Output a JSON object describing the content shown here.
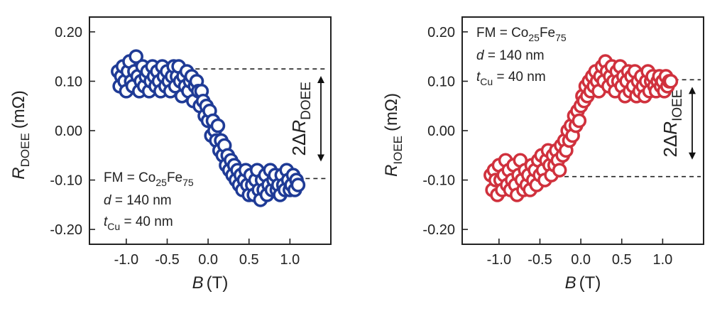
{
  "chart_data": [
    {
      "type": "scatter",
      "xlabel": {
        "var": "B",
        "unit": "(T)"
      },
      "ylabel": {
        "var": "R",
        "sub": "DOEE",
        "unit": "(mΩ)"
      },
      "xlim": [
        -1.45,
        1.5
      ],
      "ylim": [
        -0.23,
        0.23
      ],
      "xticks": [
        -1.0,
        -0.5,
        0.0,
        0.5,
        1.0
      ],
      "xtick_labels": [
        "-1.0",
        "-0.5",
        "0.0",
        "0.5",
        "1.0"
      ],
      "yticks": [
        0.2,
        0.1,
        0.0,
        -0.1,
        -0.2
      ],
      "ytick_labels": [
        "0.20",
        "0.10",
        "0.00",
        "-0.10",
        "-0.20"
      ],
      "color": "#1f3b96",
      "annotation": {
        "fm_prefix": "FM = Co",
        "fm_sub1": "25",
        "fm_mid": "Fe",
        "fm_sub2": "75",
        "d_var": "d",
        "d_rest": " = 140 nm",
        "t_var": "t",
        "t_sub": "Cu",
        "t_rest": " = 40 nm",
        "position": "bottom-left"
      },
      "delta": {
        "prefix": "2Δ",
        "var": "R",
        "sub": "DOEE",
        "upper": 0.125,
        "lower": -0.097
      },
      "points": [
        [
          -1.1,
          0.12
        ],
        [
          -1.08,
          0.09
        ],
        [
          -1.06,
          0.11
        ],
        [
          -1.04,
          0.13
        ],
        [
          -1.02,
          0.1
        ],
        [
          -1.0,
          0.08
        ],
        [
          -0.98,
          0.12
        ],
        [
          -0.96,
          0.14
        ],
        [
          -0.94,
          0.1
        ],
        [
          -0.92,
          0.09
        ],
        [
          -0.9,
          0.12
        ],
        [
          -0.88,
          0.15
        ],
        [
          -0.86,
          0.11
        ],
        [
          -0.84,
          0.08
        ],
        [
          -0.82,
          0.1
        ],
        [
          -0.8,
          0.13
        ],
        [
          -0.78,
          0.09
        ],
        [
          -0.76,
          0.11
        ],
        [
          -0.74,
          0.12
        ],
        [
          -0.72,
          0.08
        ],
        [
          -0.7,
          0.1
        ],
        [
          -0.68,
          0.13
        ],
        [
          -0.66,
          0.11
        ],
        [
          -0.64,
          0.09
        ],
        [
          -0.62,
          0.12
        ],
        [
          -0.6,
          0.1
        ],
        [
          -0.58,
          0.08
        ],
        [
          -0.56,
          0.13
        ],
        [
          -0.54,
          0.11
        ],
        [
          -0.52,
          0.09
        ],
        [
          -0.5,
          0.12
        ],
        [
          -0.48,
          0.1
        ],
        [
          -0.46,
          0.08
        ],
        [
          -0.44,
          0.11
        ],
        [
          -0.42,
          0.13
        ],
        [
          -0.4,
          0.09
        ],
        [
          -0.38,
          0.11
        ],
        [
          -0.36,
          0.13
        ],
        [
          -0.34,
          0.1
        ],
        [
          -0.32,
          0.07
        ],
        [
          -0.3,
          0.11
        ],
        [
          -0.28,
          0.09
        ],
        [
          -0.26,
          0.12
        ],
        [
          -0.24,
          0.08
        ],
        [
          -0.22,
          0.1
        ],
        [
          -0.2,
          0.11
        ],
        [
          -0.18,
          0.06
        ],
        [
          -0.16,
          0.09
        ],
        [
          -0.14,
          0.1
        ],
        [
          -0.12,
          0.08
        ],
        [
          -0.1,
          0.05
        ],
        [
          -0.08,
          0.08
        ],
        [
          -0.06,
          0.06
        ],
        [
          -0.04,
          0.03
        ],
        [
          -0.02,
          0.05
        ],
        [
          0.0,
          0.02
        ],
        [
          0.02,
          0.04
        ],
        [
          0.04,
          -0.01
        ],
        [
          0.06,
          0.02
        ],
        [
          0.08,
          0.0
        ],
        [
          0.1,
          -0.02
        ],
        [
          0.12,
          0.01
        ],
        [
          0.14,
          -0.04
        ],
        [
          0.16,
          -0.02
        ],
        [
          0.18,
          -0.05
        ],
        [
          0.2,
          -0.03
        ],
        [
          0.22,
          -0.07
        ],
        [
          0.24,
          -0.05
        ],
        [
          0.26,
          -0.08
        ],
        [
          0.28,
          -0.06
        ],
        [
          0.3,
          -0.09
        ],
        [
          0.32,
          -0.07
        ],
        [
          0.34,
          -0.1
        ],
        [
          0.36,
          -0.08
        ],
        [
          0.38,
          -0.11
        ],
        [
          0.4,
          -0.09
        ],
        [
          0.42,
          -0.12
        ],
        [
          0.44,
          -0.1
        ],
        [
          0.46,
          -0.08
        ],
        [
          0.48,
          -0.11
        ],
        [
          0.5,
          -0.13
        ],
        [
          0.52,
          -0.09
        ],
        [
          0.54,
          -0.11
        ],
        [
          0.56,
          -0.13
        ],
        [
          0.58,
          -0.1
        ],
        [
          0.6,
          -0.08
        ],
        [
          0.62,
          -0.12
        ],
        [
          0.64,
          -0.14
        ],
        [
          0.66,
          -0.1
        ],
        [
          0.68,
          -0.12
        ],
        [
          0.7,
          -0.09
        ],
        [
          0.72,
          -0.13
        ],
        [
          0.74,
          -0.11
        ],
        [
          0.76,
          -0.08
        ],
        [
          0.78,
          -0.12
        ],
        [
          0.8,
          -0.1
        ],
        [
          0.82,
          -0.09
        ],
        [
          0.84,
          -0.12
        ],
        [
          0.86,
          -0.11
        ],
        [
          0.88,
          -0.13
        ],
        [
          0.9,
          -0.09
        ],
        [
          0.92,
          -0.11
        ],
        [
          0.94,
          -0.12
        ],
        [
          0.96,
          -0.08
        ],
        [
          0.98,
          -0.1
        ],
        [
          1.0,
          -0.12
        ],
        [
          1.02,
          -0.11
        ],
        [
          1.04,
          -0.09
        ],
        [
          1.06,
          -0.12
        ],
        [
          1.08,
          -0.1
        ],
        [
          1.1,
          -0.11
        ]
      ]
    },
    {
      "type": "scatter",
      "xlabel": {
        "var": "B",
        "unit": "(T)"
      },
      "ylabel": {
        "var": "R",
        "sub": "IOEE",
        "unit": "(mΩ)"
      },
      "xlim": [
        -1.45,
        1.5
      ],
      "ylim": [
        -0.23,
        0.23
      ],
      "xticks": [
        -1.0,
        -0.5,
        0.0,
        0.5,
        1.0
      ],
      "xtick_labels": [
        "-1.0",
        "-0.5",
        "0.0",
        "0.5",
        "1.0"
      ],
      "yticks": [
        0.2,
        0.1,
        0.0,
        -0.1,
        -0.2
      ],
      "ytick_labels": [
        "0.20",
        "0.10",
        "0.00",
        "-0.10",
        "-0.20"
      ],
      "color": "#d0313d",
      "annotation": {
        "fm_prefix": "FM = Co",
        "fm_sub1": "25",
        "fm_mid": "Fe",
        "fm_sub2": "75",
        "d_var": "d",
        "d_rest": " = 140 nm",
        "t_var": "t",
        "t_sub": "Cu",
        "t_rest": " = 40 nm",
        "position": "top-left"
      },
      "delta": {
        "prefix": "2Δ",
        "var": "R",
        "sub": "IOEE",
        "upper": 0.103,
        "lower": -0.093
      },
      "points": [
        [
          -1.1,
          -0.09
        ],
        [
          -1.08,
          -0.12
        ],
        [
          -1.06,
          -0.08
        ],
        [
          -1.04,
          -0.1
        ],
        [
          -1.02,
          -0.13
        ],
        [
          -1.0,
          -0.07
        ],
        [
          -0.98,
          -0.1
        ],
        [
          -0.96,
          -0.12
        ],
        [
          -0.94,
          -0.09
        ],
        [
          -0.92,
          -0.06
        ],
        [
          -0.9,
          -0.11
        ],
        [
          -0.88,
          -0.08
        ],
        [
          -0.86,
          -0.12
        ],
        [
          -0.84,
          -0.1
        ],
        [
          -0.82,
          -0.07
        ],
        [
          -0.8,
          -0.11
        ],
        [
          -0.78,
          -0.13
        ],
        [
          -0.76,
          -0.09
        ],
        [
          -0.74,
          -0.06
        ],
        [
          -0.72,
          -0.1
        ],
        [
          -0.7,
          -0.12
        ],
        [
          -0.68,
          -0.08
        ],
        [
          -0.66,
          -0.11
        ],
        [
          -0.64,
          -0.09
        ],
        [
          -0.62,
          -0.12
        ],
        [
          -0.6,
          -0.07
        ],
        [
          -0.58,
          -0.1
        ],
        [
          -0.56,
          -0.08
        ],
        [
          -0.54,
          -0.11
        ],
        [
          -0.52,
          -0.06
        ],
        [
          -0.5,
          -0.09
        ],
        [
          -0.48,
          -0.05
        ],
        [
          -0.46,
          -0.08
        ],
        [
          -0.44,
          -0.1
        ],
        [
          -0.42,
          -0.06
        ],
        [
          -0.4,
          -0.04
        ],
        [
          -0.38,
          -0.07
        ],
        [
          -0.36,
          -0.09
        ],
        [
          -0.34,
          -0.05
        ],
        [
          -0.32,
          -0.07
        ],
        [
          -0.3,
          -0.04
        ],
        [
          -0.28,
          -0.06
        ],
        [
          -0.26,
          -0.08
        ],
        [
          -0.24,
          -0.03
        ],
        [
          -0.22,
          -0.05
        ],
        [
          -0.2,
          -0.02
        ],
        [
          -0.18,
          -0.04
        ],
        [
          -0.16,
          0.0
        ],
        [
          -0.14,
          -0.02
        ],
        [
          -0.12,
          0.01
        ],
        [
          -0.1,
          -0.01
        ],
        [
          -0.08,
          0.03
        ],
        [
          -0.06,
          0.01
        ],
        [
          -0.04,
          0.04
        ],
        [
          -0.02,
          0.02
        ],
        [
          0.0,
          0.05
        ],
        [
          0.02,
          0.07
        ],
        [
          0.04,
          0.06
        ],
        [
          0.06,
          0.09
        ],
        [
          0.08,
          0.07
        ],
        [
          0.1,
          0.1
        ],
        [
          0.12,
          0.08
        ],
        [
          0.14,
          0.11
        ],
        [
          0.16,
          0.09
        ],
        [
          0.18,
          0.12
        ],
        [
          0.2,
          0.1
        ],
        [
          0.22,
          0.08
        ],
        [
          0.24,
          0.11
        ],
        [
          0.26,
          0.13
        ],
        [
          0.28,
          0.1
        ],
        [
          0.3,
          0.14
        ],
        [
          0.32,
          0.12
        ],
        [
          0.34,
          0.09
        ],
        [
          0.36,
          0.11
        ],
        [
          0.38,
          0.13
        ],
        [
          0.4,
          0.1
        ],
        [
          0.42,
          0.08
        ],
        [
          0.44,
          0.12
        ],
        [
          0.46,
          0.1
        ],
        [
          0.48,
          0.13
        ],
        [
          0.5,
          0.09
        ],
        [
          0.52,
          0.11
        ],
        [
          0.54,
          0.07
        ],
        [
          0.56,
          0.1
        ],
        [
          0.58,
          0.12
        ],
        [
          0.6,
          0.08
        ],
        [
          0.62,
          0.11
        ],
        [
          0.64,
          0.09
        ],
        [
          0.66,
          0.12
        ],
        [
          0.68,
          0.07
        ],
        [
          0.7,
          0.1
        ],
        [
          0.72,
          0.08
        ],
        [
          0.74,
          0.11
        ],
        [
          0.76,
          0.09
        ],
        [
          0.78,
          0.07
        ],
        [
          0.8,
          0.1
        ],
        [
          0.82,
          0.12
        ],
        [
          0.84,
          0.08
        ],
        [
          0.86,
          0.1
        ],
        [
          0.88,
          0.11
        ],
        [
          0.9,
          0.09
        ],
        [
          0.92,
          0.08
        ],
        [
          0.94,
          0.1
        ],
        [
          0.96,
          0.11
        ],
        [
          0.98,
          0.09
        ],
        [
          1.0,
          0.1
        ],
        [
          1.02,
          0.08
        ],
        [
          1.04,
          0.11
        ],
        [
          1.06,
          0.09
        ],
        [
          1.08,
          0.1
        ],
        [
          1.1,
          0.1
        ]
      ]
    }
  ]
}
